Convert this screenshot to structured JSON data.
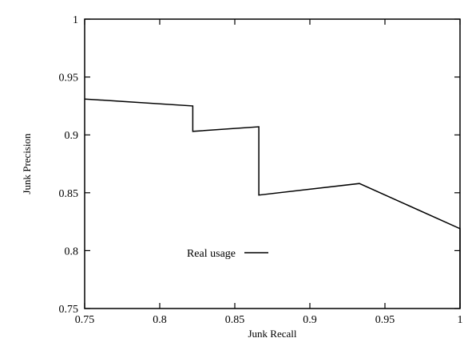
{
  "chart_data": {
    "type": "line",
    "xlabel": "Junk Recall",
    "ylabel": "Junk Precision",
    "xlim": [
      0.75,
      1.0
    ],
    "ylim": [
      0.75,
      1.0
    ],
    "x_ticks": [
      0.75,
      0.8,
      0.85,
      0.9,
      0.95,
      1.0
    ],
    "x_tick_labels": [
      "0.75",
      "0.8",
      "0.85",
      "0.9",
      "0.95",
      "1"
    ],
    "y_ticks": [
      0.75,
      0.8,
      0.85,
      0.9,
      0.95,
      1.0
    ],
    "y_tick_labels": [
      "0.75",
      "0.8",
      "0.85",
      "0.9",
      "0.95",
      "1"
    ],
    "grid": false,
    "legend_position": "center-left",
    "series": [
      {
        "name": "Real usage",
        "color": "#000000",
        "x": [
          0.75,
          0.822,
          0.822,
          0.866,
          0.866,
          0.933,
          1.0,
          1.0
        ],
        "y": [
          0.931,
          0.925,
          0.903,
          0.907,
          0.848,
          0.858,
          0.819,
          0.75
        ]
      }
    ]
  }
}
